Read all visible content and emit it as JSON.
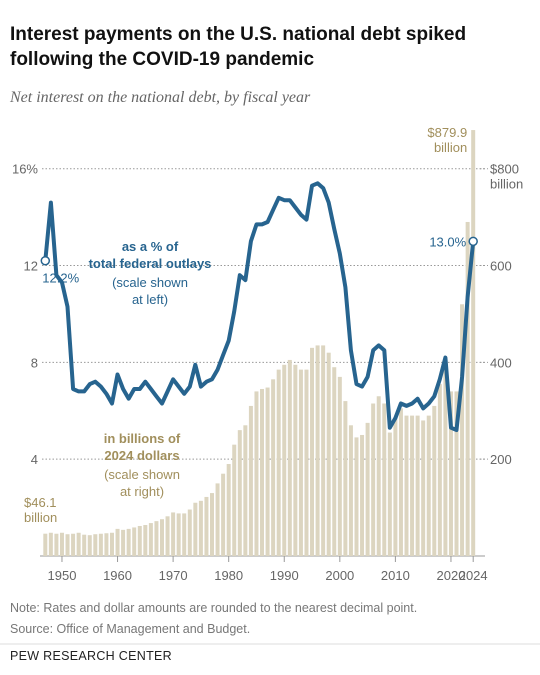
{
  "chart_data": {
    "type": "bar-line",
    "title": "Interest payments on the U.S. national debt spiked following the COVID-19 pandemic",
    "subtitle": "Net interest on the national debt, by fiscal year",
    "x": [
      1947,
      1948,
      1949,
      1950,
      1951,
      1952,
      1953,
      1954,
      1955,
      1956,
      1957,
      1958,
      1959,
      1960,
      1961,
      1962,
      1963,
      1964,
      1965,
      1966,
      1967,
      1968,
      1969,
      1970,
      1971,
      1972,
      1973,
      1974,
      1975,
      1976,
      1977,
      1978,
      1979,
      1980,
      1981,
      1982,
      1983,
      1984,
      1985,
      1986,
      1987,
      1988,
      1989,
      1990,
      1991,
      1992,
      1993,
      1994,
      1995,
      1996,
      1997,
      1998,
      1999,
      2000,
      2001,
      2002,
      2003,
      2004,
      2005,
      2006,
      2007,
      2008,
      2009,
      2010,
      2011,
      2012,
      2013,
      2014,
      2015,
      2016,
      2017,
      2018,
      2019,
      2020,
      2021,
      2022,
      2023,
      2024
    ],
    "xlim": [
      1946,
      2025
    ],
    "xticks": [
      1950,
      1960,
      1970,
      1980,
      1990,
      2000,
      2010,
      2020,
      2024
    ],
    "ylim": [
      0,
      17.6
    ],
    "yticks": [
      4,
      8,
      12,
      {
        "value": 16,
        "label": "16%"
      }
    ],
    "y2lim": [
      0,
      880
    ],
    "y2ticks": [
      200,
      400,
      600,
      {
        "value": 800,
        "label": "$800 billion"
      }
    ],
    "series": [
      {
        "name": "in billions of 2024 dollars",
        "note": "(scale shown at right)",
        "kind": "bar",
        "axis": "y2",
        "color": "#dcd5c0",
        "label_color": "#a18f5c",
        "values": [
          46.1,
          48,
          46,
          48,
          45,
          46,
          48,
          44,
          43,
          45,
          46,
          47,
          48,
          56,
          54,
          56,
          59,
          62,
          64,
          68,
          72,
          76,
          82,
          90,
          88,
          88,
          96,
          110,
          114,
          122,
          130,
          150,
          170,
          190,
          230,
          260,
          270,
          310,
          340,
          345,
          348,
          365,
          385,
          395,
          405,
          395,
          385,
          385,
          430,
          435,
          435,
          420,
          390,
          370,
          320,
          270,
          245,
          250,
          275,
          315,
          330,
          315,
          255,
          285,
          305,
          290,
          290,
          290,
          280,
          290,
          310,
          355,
          385,
          340,
          340,
          520,
          690,
          879.9
        ],
        "value_labels": [
          "$46.1 billion",
          null,
          null,
          null,
          null,
          null,
          null,
          null,
          null,
          null,
          null,
          null,
          null,
          null,
          null,
          null,
          null,
          null,
          null,
          null,
          null,
          null,
          null,
          null,
          null,
          null,
          null,
          null,
          null,
          null,
          null,
          null,
          null,
          null,
          null,
          null,
          null,
          null,
          null,
          null,
          null,
          null,
          null,
          null,
          null,
          null,
          null,
          null,
          null,
          null,
          null,
          null,
          null,
          null,
          null,
          null,
          null,
          null,
          null,
          null,
          null,
          null,
          null,
          null,
          null,
          null,
          null,
          null,
          null,
          null,
          null,
          null,
          null,
          null,
          null,
          null,
          null,
          "$879.9 billion"
        ]
      },
      {
        "name": "as a % of total federal outlays",
        "note": "(scale shown at left)",
        "kind": "line",
        "axis": "y",
        "color": "#27648f",
        "label_color": "#27648f",
        "values": [
          12.2,
          14.6,
          11.6,
          11.3,
          10.3,
          6.9,
          6.8,
          6.8,
          7.1,
          7.2,
          7.0,
          6.7,
          6.3,
          7.5,
          6.9,
          6.5,
          6.9,
          6.9,
          7.2,
          6.9,
          6.6,
          6.3,
          6.8,
          7.3,
          7.0,
          6.7,
          7.0,
          7.9,
          7.0,
          7.2,
          7.3,
          7.7,
          8.3,
          8.9,
          10.1,
          11.6,
          11.4,
          13.0,
          13.7,
          13.7,
          13.8,
          14.3,
          14.8,
          14.7,
          14.7,
          14.4,
          14.1,
          13.9,
          15.3,
          15.4,
          15.2,
          14.6,
          13.5,
          12.5,
          11.1,
          8.5,
          7.1,
          7.0,
          7.4,
          8.5,
          8.7,
          8.5,
          5.3,
          5.7,
          6.3,
          6.2,
          6.3,
          6.5,
          6.1,
          6.3,
          6.6,
          7.3,
          8.2,
          5.3,
          5.2,
          7.4,
          10.7,
          13.0
        ],
        "value_labels": [
          "12.2%",
          null,
          null,
          null,
          null,
          null,
          null,
          null,
          null,
          null,
          null,
          null,
          null,
          null,
          null,
          null,
          null,
          null,
          null,
          null,
          null,
          null,
          null,
          null,
          null,
          null,
          null,
          null,
          null,
          null,
          null,
          null,
          null,
          null,
          null,
          null,
          null,
          null,
          null,
          null,
          null,
          null,
          null,
          null,
          null,
          null,
          null,
          null,
          null,
          null,
          null,
          null,
          null,
          null,
          null,
          null,
          null,
          null,
          null,
          null,
          null,
          null,
          null,
          null,
          null,
          null,
          null,
          null,
          null,
          null,
          null,
          null,
          null,
          null,
          null,
          null,
          null,
          "13.0%"
        ]
      }
    ],
    "notes": [
      "Note: Rates and dollar amounts are rounded to the nearest decimal point.",
      "Source: Office of Management and Budget."
    ],
    "source": "PEW RESEARCH CENTER"
  }
}
